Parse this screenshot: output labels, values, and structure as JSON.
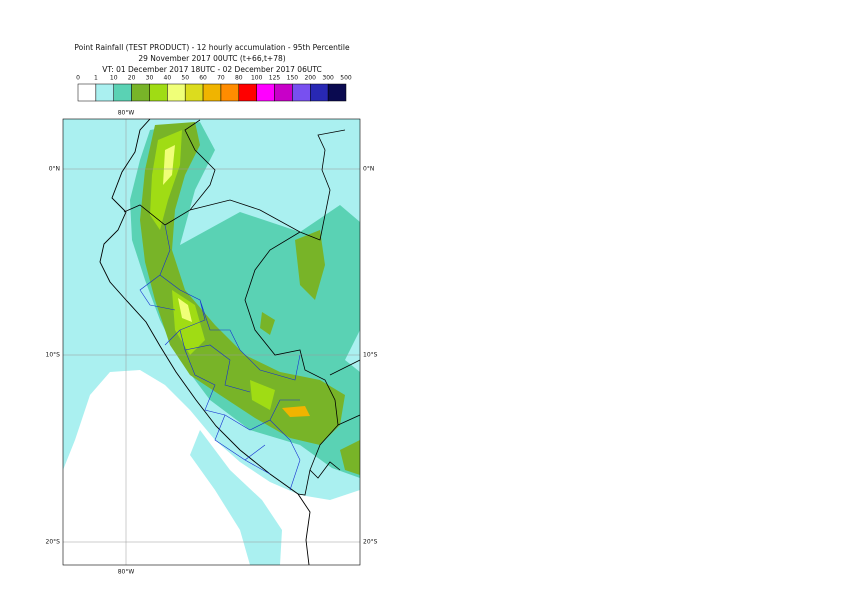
{
  "header": {
    "lines": [
      "Point Rainfall (TEST PRODUCT) - 12 hourly accumulation - 95th Percentile",
      "29 November 2017 00UTC (t+66,t+78)",
      "VT: 01 December 2017 18UTC - 02 December 2017 06UTC"
    ]
  },
  "legend": {
    "ticks": [
      0,
      1,
      10,
      20,
      30,
      40,
      50,
      60,
      70,
      80,
      100,
      125,
      150,
      200,
      300,
      500
    ],
    "colors": [
      "#ffffff",
      "#aaf0f0",
      "#5ad2b4",
      "#78b428",
      "#a0dc14",
      "#f0ff78",
      "#dcdc1e",
      "#f0b400",
      "#ff8c00",
      "#ff0000",
      "#ff00ff",
      "#c800c8",
      "#7850f0",
      "#2828b4",
      "#0a0a50"
    ]
  },
  "map": {
    "lon_labels": [
      "80°W"
    ],
    "lat_labels": [
      "0°N",
      "10°S",
      "20°S"
    ]
  }
}
